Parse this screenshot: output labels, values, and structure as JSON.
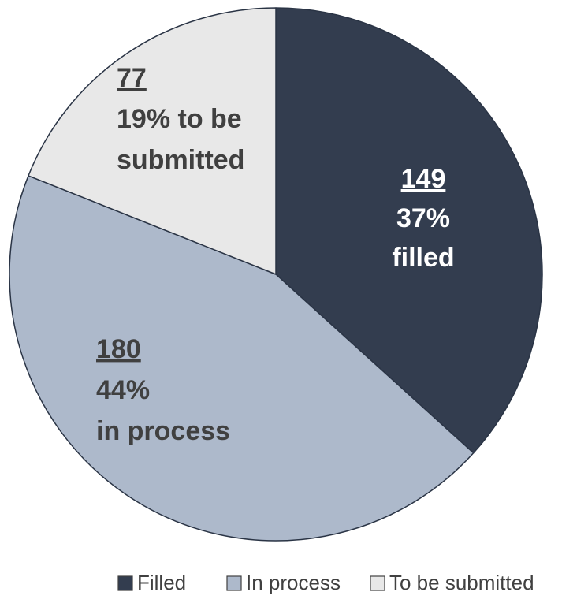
{
  "chart_data": {
    "type": "pie",
    "title": "",
    "legend_position": "bottom",
    "start_angle_deg": 0,
    "direction": "clockwise",
    "slices": [
      {
        "name": "Filled",
        "value": 149,
        "count_label": "149",
        "pct_label": "37%",
        "desc_label": "filled",
        "color": "#333d4f",
        "text_color": "#ffffff",
        "legend_fill": "#333d4f"
      },
      {
        "name": "In process",
        "value": 180,
        "count_label": "180",
        "pct_label": "44%",
        "desc_label": "in process",
        "color": "#adb9cb",
        "text_color": "#404040",
        "legend_fill": "#adb9cb"
      },
      {
        "name": "To be submitted",
        "value": 77,
        "count_label": "77",
        "pct_label": "19% to be",
        "desc_label": "submitted",
        "color": "#e8e8e8",
        "text_color": "#404040",
        "legend_fill": "#e8e8e8"
      }
    ],
    "outline_color": "#2a3445"
  }
}
